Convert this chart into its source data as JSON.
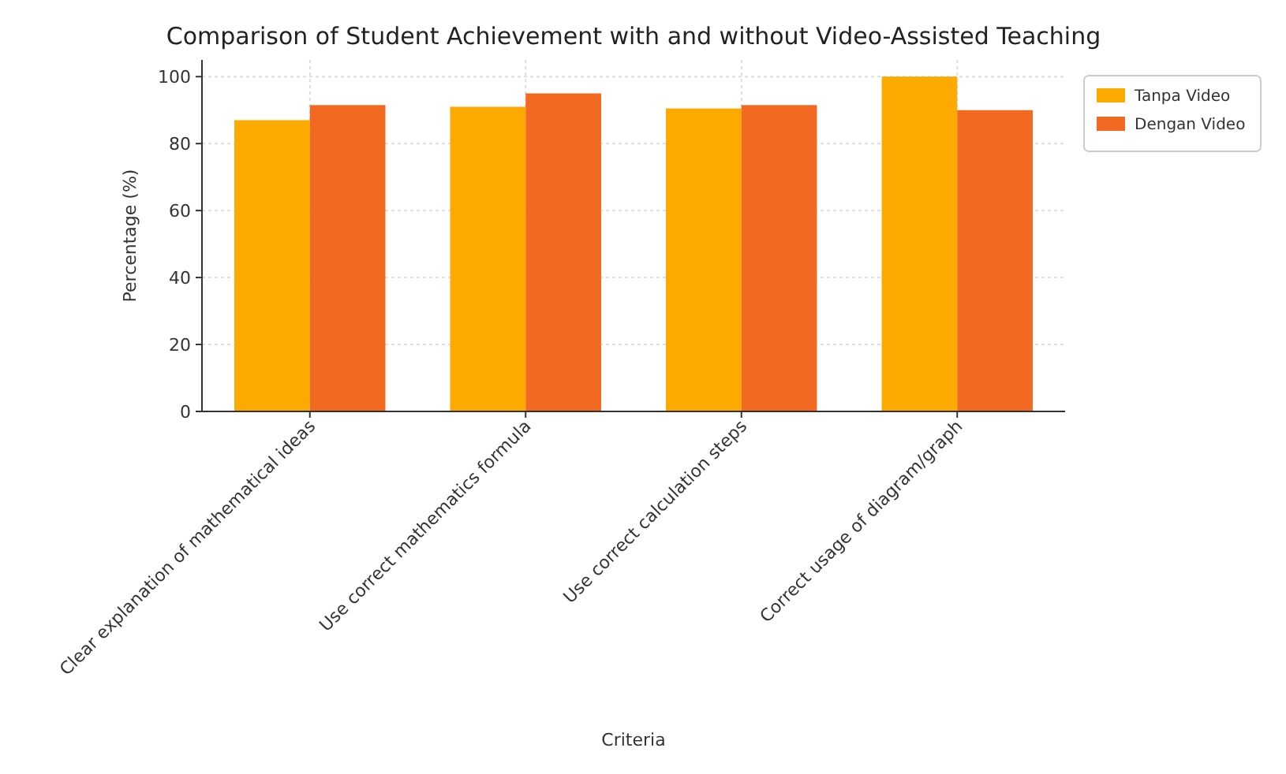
{
  "chart_data": {
    "type": "bar",
    "title": "Comparison of Student Achievement with and without Video-Assisted Teaching",
    "xlabel": "Criteria",
    "ylabel": "Percentage (%)",
    "categories": [
      "Clear explanation of mathematical ideas",
      "Use correct mathematics formula",
      "Use correct calculation steps",
      "Correct usage of diagram/graph"
    ],
    "series": [
      {
        "name": "Tanpa Video",
        "color": "#fdaa00",
        "values": [
          87,
          91,
          90.5,
          100
        ]
      },
      {
        "name": "Dengan Video",
        "color": "#f26a21",
        "values": [
          91.5,
          95,
          91.5,
          90
        ]
      }
    ],
    "ylim": [
      0,
      105
    ],
    "yticks": [
      0,
      20,
      40,
      60,
      80,
      100
    ],
    "grid": true,
    "legend": "right"
  }
}
